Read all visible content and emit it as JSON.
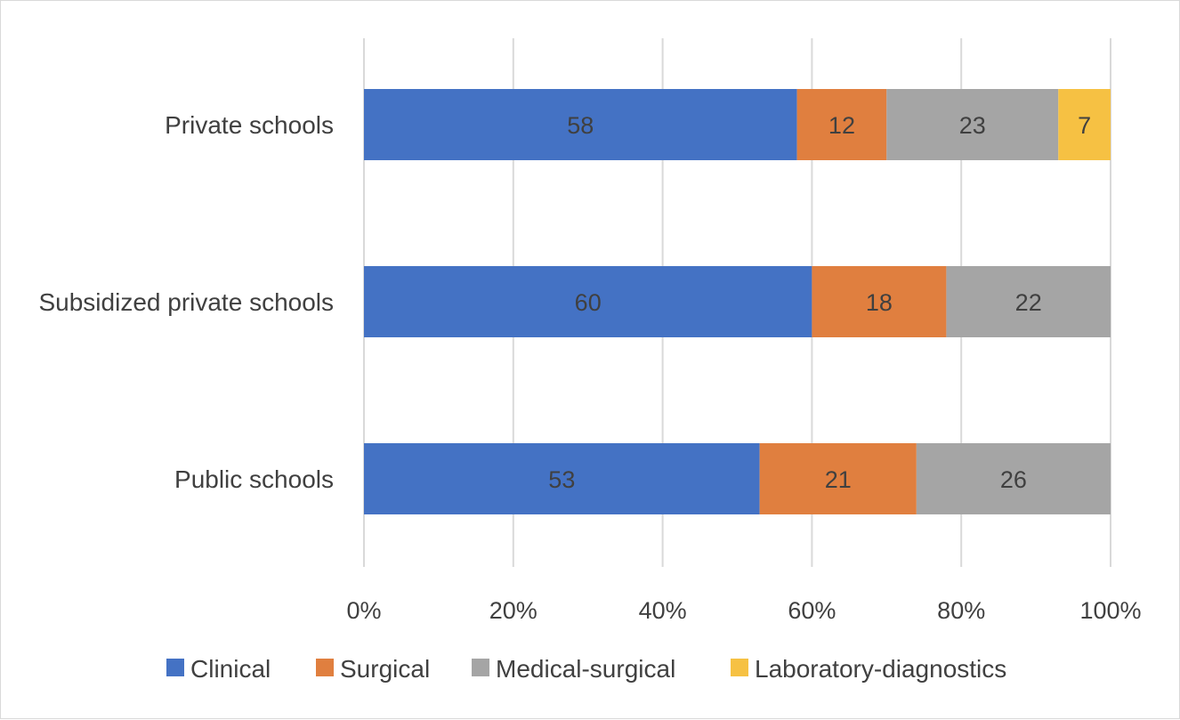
{
  "chart_data": {
    "type": "bar",
    "orientation": "horizontal",
    "stacked": "percent",
    "title": "",
    "xlabel": "",
    "ylabel": "",
    "categories": [
      "Private schools",
      "Subsidized private schools",
      "Public schools"
    ],
    "series": [
      {
        "name": "Clinical",
        "color": "#4472c4",
        "values": [
          58,
          60,
          53
        ]
      },
      {
        "name": "Surgical",
        "color": "#e07f3f",
        "values": [
          12,
          18,
          21
        ]
      },
      {
        "name": "Medical-surgical",
        "color": "#a5a5a5",
        "values": [
          23,
          22,
          26
        ]
      },
      {
        "name": "Laboratory-diagnostics",
        "color": "#f6c143",
        "values": [
          7,
          0,
          0
        ]
      }
    ],
    "xlim": [
      0,
      100
    ],
    "x_ticks": [
      "0%",
      "20%",
      "40%",
      "60%",
      "80%",
      "100%"
    ],
    "grid": true,
    "legend": "bottom"
  }
}
